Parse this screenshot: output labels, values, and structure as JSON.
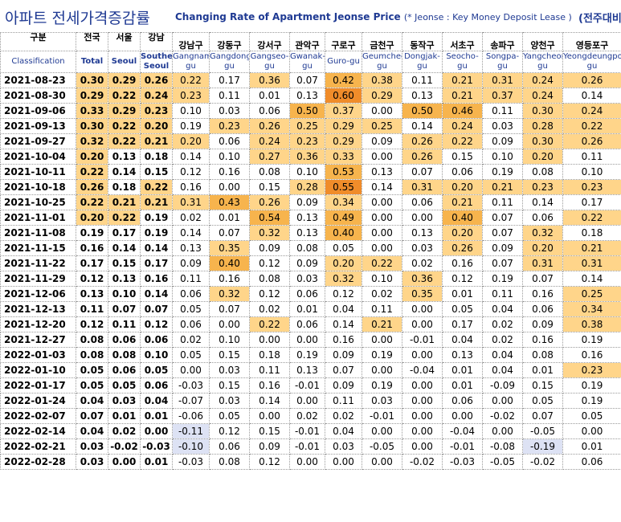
{
  "title": {
    "korean": "아파트 전세가격증감률",
    "english": "Changing Rate of Apartment Jeonse Price",
    "note": "(* Jeonse : Key Money Deposit Lease )",
    "right": "(전주대비"
  },
  "colors": {
    "title": "#1f3a93",
    "high_1": "#ffe7a8",
    "high_2": "#ffd58a",
    "high_3": "#f7b44d",
    "high_4": "#f08c2a",
    "negative": "#dde2f4"
  },
  "chart_data": {
    "type": "table",
    "columns": [
      {
        "ko": "구분",
        "en": "Classification"
      },
      {
        "ko": "전국",
        "en": "Total"
      },
      {
        "ko": "서울",
        "en": "Seoul"
      },
      {
        "ko": "강남",
        "en": "Southern Seoul"
      },
      {
        "ko": "강남구",
        "en": "Gangnam-gu"
      },
      {
        "ko": "강동구",
        "en": "Gangdong-gu"
      },
      {
        "ko": "강서구",
        "en": "Gangseo-gu"
      },
      {
        "ko": "관악구",
        "en": "Gwanak-gu"
      },
      {
        "ko": "구로구",
        "en": "Guro-gu"
      },
      {
        "ko": "금천구",
        "en": "Geumcheon-gu"
      },
      {
        "ko": "동작구",
        "en": "Dongjak-gu"
      },
      {
        "ko": "서초구",
        "en": "Seocho-gu"
      },
      {
        "ko": "송파구",
        "en": "Songpa-gu"
      },
      {
        "ko": "양천구",
        "en": "Yangcheon-gu"
      },
      {
        "ko": "영등포구",
        "en": "Yeongdeungpo-gu"
      }
    ],
    "rows": [
      {
        "date": "2021-08-23",
        "values": [
          "0.30",
          "0.29",
          "0.26",
          "0.22",
          "0.17",
          "0.36",
          "0.07",
          "0.42",
          "0.38",
          "0.11",
          "0.21",
          "0.31",
          "0.24",
          "0.26"
        ]
      },
      {
        "date": "2021-08-30",
        "values": [
          "0.29",
          "0.22",
          "0.24",
          "0.23",
          "0.11",
          "0.01",
          "0.13",
          "0.60",
          "0.29",
          "0.13",
          "0.21",
          "0.37",
          "0.24",
          "0.14"
        ]
      },
      {
        "date": "2021-09-06",
        "values": [
          "0.33",
          "0.29",
          "0.23",
          "0.10",
          "0.03",
          "0.06",
          "0.50",
          "0.37",
          "0.00",
          "0.50",
          "0.46",
          "0.11",
          "0.30",
          "0.24"
        ]
      },
      {
        "date": "2021-09-13",
        "values": [
          "0.30",
          "0.22",
          "0.20",
          "0.19",
          "0.23",
          "0.26",
          "0.25",
          "0.29",
          "0.25",
          "0.14",
          "0.24",
          "0.03",
          "0.28",
          "0.22"
        ]
      },
      {
        "date": "2021-09-27",
        "values": [
          "0.32",
          "0.22",
          "0.21",
          "0.20",
          "0.06",
          "0.24",
          "0.23",
          "0.29",
          "0.09",
          "0.26",
          "0.22",
          "0.09",
          "0.30",
          "0.26"
        ]
      },
      {
        "date": "2021-10-04",
        "values": [
          "0.20",
          "0.13",
          "0.18",
          "0.14",
          "0.10",
          "0.27",
          "0.36",
          "0.33",
          "0.00",
          "0.26",
          "0.15",
          "0.10",
          "0.20",
          "0.11"
        ]
      },
      {
        "date": "2021-10-11",
        "values": [
          "0.22",
          "0.14",
          "0.15",
          "0.12",
          "0.16",
          "0.08",
          "0.10",
          "0.53",
          "0.13",
          "0.07",
          "0.06",
          "0.19",
          "0.08",
          "0.10"
        ]
      },
      {
        "date": "2021-10-18",
        "values": [
          "0.26",
          "0.18",
          "0.22",
          "0.16",
          "0.00",
          "0.15",
          "0.28",
          "0.55",
          "0.14",
          "0.31",
          "0.20",
          "0.21",
          "0.23",
          "0.23"
        ]
      },
      {
        "date": "2021-10-25",
        "values": [
          "0.22",
          "0.21",
          "0.21",
          "0.31",
          "0.43",
          "0.26",
          "0.09",
          "0.34",
          "0.00",
          "0.06",
          "0.21",
          "0.11",
          "0.14",
          "0.17"
        ]
      },
      {
        "date": "2021-11-01",
        "values": [
          "0.20",
          "0.22",
          "0.19",
          "0.02",
          "0.01",
          "0.54",
          "0.13",
          "0.49",
          "0.00",
          "0.00",
          "0.40",
          "0.07",
          "0.06",
          "0.22"
        ]
      },
      {
        "date": "2021-11-08",
        "values": [
          "0.19",
          "0.17",
          "0.19",
          "0.14",
          "0.07",
          "0.32",
          "0.13",
          "0.40",
          "0.00",
          "0.13",
          "0.20",
          "0.07",
          "0.32",
          "0.18"
        ]
      },
      {
        "date": "2021-11-15",
        "values": [
          "0.16",
          "0.14",
          "0.14",
          "0.13",
          "0.35",
          "0.09",
          "0.08",
          "0.05",
          "0.00",
          "0.03",
          "0.26",
          "0.09",
          "0.20",
          "0.21"
        ]
      },
      {
        "date": "2021-11-22",
        "values": [
          "0.17",
          "0.15",
          "0.17",
          "0.09",
          "0.40",
          "0.12",
          "0.09",
          "0.20",
          "0.22",
          "0.02",
          "0.16",
          "0.07",
          "0.31",
          "0.31"
        ]
      },
      {
        "date": "2021-11-29",
        "values": [
          "0.12",
          "0.13",
          "0.16",
          "0.11",
          "0.16",
          "0.08",
          "0.03",
          "0.32",
          "0.10",
          "0.36",
          "0.12",
          "0.19",
          "0.07",
          "0.14"
        ]
      },
      {
        "date": "2021-12-06",
        "values": [
          "0.13",
          "0.10",
          "0.14",
          "0.06",
          "0.32",
          "0.12",
          "0.06",
          "0.12",
          "0.02",
          "0.35",
          "0.01",
          "0.11",
          "0.16",
          "0.25"
        ]
      },
      {
        "date": "2021-12-13",
        "values": [
          "0.11",
          "0.07",
          "0.07",
          "0.05",
          "0.07",
          "0.02",
          "0.01",
          "0.04",
          "0.11",
          "0.00",
          "0.05",
          "0.04",
          "0.06",
          "0.34"
        ]
      },
      {
        "date": "2021-12-20",
        "values": [
          "0.12",
          "0.11",
          "0.12",
          "0.06",
          "0.00",
          "0.22",
          "0.06",
          "0.14",
          "0.21",
          "0.00",
          "0.17",
          "0.02",
          "0.09",
          "0.38"
        ]
      },
      {
        "date": "2021-12-27",
        "values": [
          "0.08",
          "0.06",
          "0.06",
          "0.02",
          "0.10",
          "0.00",
          "0.00",
          "0.16",
          "0.00",
          "-0.01",
          "0.04",
          "0.02",
          "0.16",
          "0.19"
        ]
      },
      {
        "date": "2022-01-03",
        "values": [
          "0.08",
          "0.08",
          "0.10",
          "0.05",
          "0.15",
          "0.18",
          "0.19",
          "0.09",
          "0.19",
          "0.00",
          "0.13",
          "0.04",
          "0.08",
          "0.16"
        ]
      },
      {
        "date": "2022-01-10",
        "values": [
          "0.05",
          "0.06",
          "0.05",
          "0.00",
          "0.03",
          "0.11",
          "0.13",
          "0.07",
          "0.00",
          "-0.04",
          "0.01",
          "0.04",
          "0.01",
          "0.23"
        ]
      },
      {
        "date": "2022-01-17",
        "values": [
          "0.05",
          "0.05",
          "0.06",
          "-0.03",
          "0.15",
          "0.16",
          "-0.01",
          "0.09",
          "0.19",
          "0.00",
          "0.01",
          "-0.09",
          "0.15",
          "0.19"
        ]
      },
      {
        "date": "2022-01-24",
        "values": [
          "0.04",
          "0.03",
          "0.04",
          "-0.07",
          "0.03",
          "0.14",
          "0.00",
          "0.11",
          "0.03",
          "0.00",
          "0.06",
          "0.00",
          "0.05",
          "0.19"
        ]
      },
      {
        "date": "2022-02-07",
        "values": [
          "0.07",
          "0.01",
          "0.01",
          "-0.06",
          "0.05",
          "0.00",
          "0.02",
          "0.02",
          "-0.01",
          "0.00",
          "0.00",
          "-0.02",
          "0.07",
          "0.05"
        ]
      },
      {
        "date": "2022-02-14",
        "values": [
          "0.04",
          "0.02",
          "0.00",
          "-0.11",
          "0.12",
          "0.15",
          "-0.01",
          "0.04",
          "0.00",
          "0.00",
          "-0.04",
          "0.00",
          "-0.05",
          "0.00"
        ]
      },
      {
        "date": "2022-02-21",
        "values": [
          "0.03",
          "-0.02",
          "-0.03",
          "-0.10",
          "0.06",
          "0.09",
          "-0.01",
          "0.03",
          "-0.05",
          "0.00",
          "-0.01",
          "-0.08",
          "-0.19",
          "0.01"
        ]
      },
      {
        "date": "2022-02-28",
        "values": [
          "0.03",
          "0.00",
          "0.01",
          "-0.03",
          "0.08",
          "0.12",
          "0.00",
          "0.00",
          "0.00",
          "-0.02",
          "-0.03",
          "-0.05",
          "-0.02",
          "0.06"
        ]
      }
    ]
  }
}
